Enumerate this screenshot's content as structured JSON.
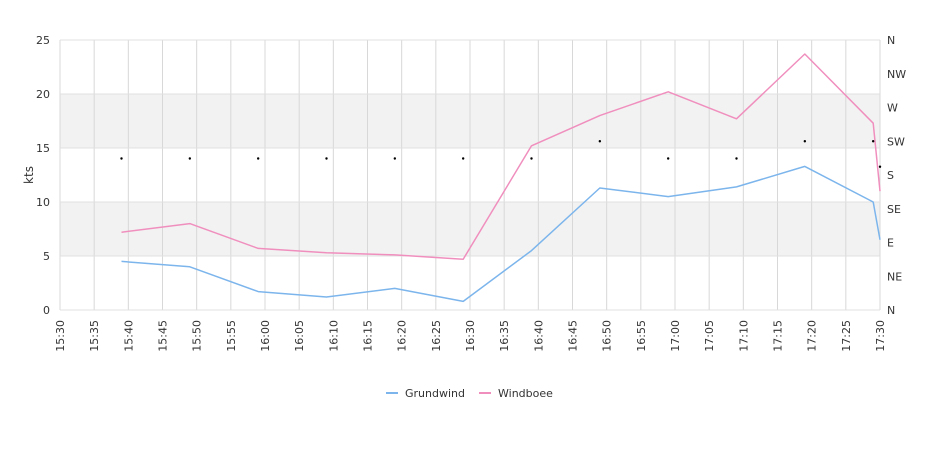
{
  "chart_data": {
    "type": "line",
    "title": "",
    "xlabel": "",
    "ylabel": "kts",
    "ylim": [
      0,
      25
    ],
    "y_ticks": [
      "0",
      "5",
      "10",
      "15",
      "20",
      "25"
    ],
    "x_tick_labels": [
      "15:30",
      "15:35",
      "15:40",
      "15:45",
      "15:50",
      "15:55",
      "16:00",
      "16:05",
      "16:10",
      "16:15",
      "16:20",
      "16:25",
      "16:30",
      "16:35",
      "16:40",
      "16:45",
      "16:50",
      "16:55",
      "17:00",
      "17:05",
      "17:10",
      "17:15",
      "17:20",
      "17:25",
      "17:30"
    ],
    "x_range": [
      "15:30",
      "17:30"
    ],
    "band_ranges": [
      [
        5,
        10
      ],
      [
        15,
        20
      ]
    ],
    "grid": true,
    "legend_position": "bottom",
    "right_axis": {
      "labels": [
        "N",
        "NE",
        "E",
        "SE",
        "S",
        "SW",
        "W",
        "NW",
        "N"
      ],
      "range_deg": [
        0,
        360
      ]
    },
    "series": [
      {
        "name": "Grundwind",
        "color": "#7cb5ec",
        "x": [
          "15:39",
          "15:49",
          "15:59",
          "16:09",
          "16:19",
          "16:29",
          "16:39",
          "16:49",
          "16:59",
          "17:09",
          "17:19",
          "17:29",
          "17:30"
        ],
        "values": [
          4.5,
          4.0,
          1.7,
          1.2,
          2.0,
          0.8,
          5.5,
          11.3,
          10.5,
          11.4,
          13.3,
          10.0,
          6.5
        ]
      },
      {
        "name": "Windboee",
        "color": "#f08fbe",
        "x": [
          "15:39",
          "15:49",
          "15:59",
          "16:09",
          "16:19",
          "16:29",
          "16:39",
          "16:49",
          "16:59",
          "17:09",
          "17:19",
          "17:29",
          "17:30"
        ],
        "values": [
          7.2,
          8.0,
          5.7,
          5.3,
          5.1,
          4.7,
          15.2,
          18.0,
          20.2,
          17.7,
          23.7,
          17.3,
          11.0
        ]
      }
    ],
    "direction": {
      "x": [
        "15:39",
        "15:49",
        "15:59",
        "16:09",
        "16:19",
        "16:29",
        "16:39",
        "16:49",
        "16:59",
        "17:09",
        "17:19",
        "17:29",
        "17:30"
      ],
      "degrees": [
        202,
        202,
        202,
        202,
        202,
        202,
        202,
        225,
        202,
        202,
        225,
        225,
        191
      ]
    }
  }
}
